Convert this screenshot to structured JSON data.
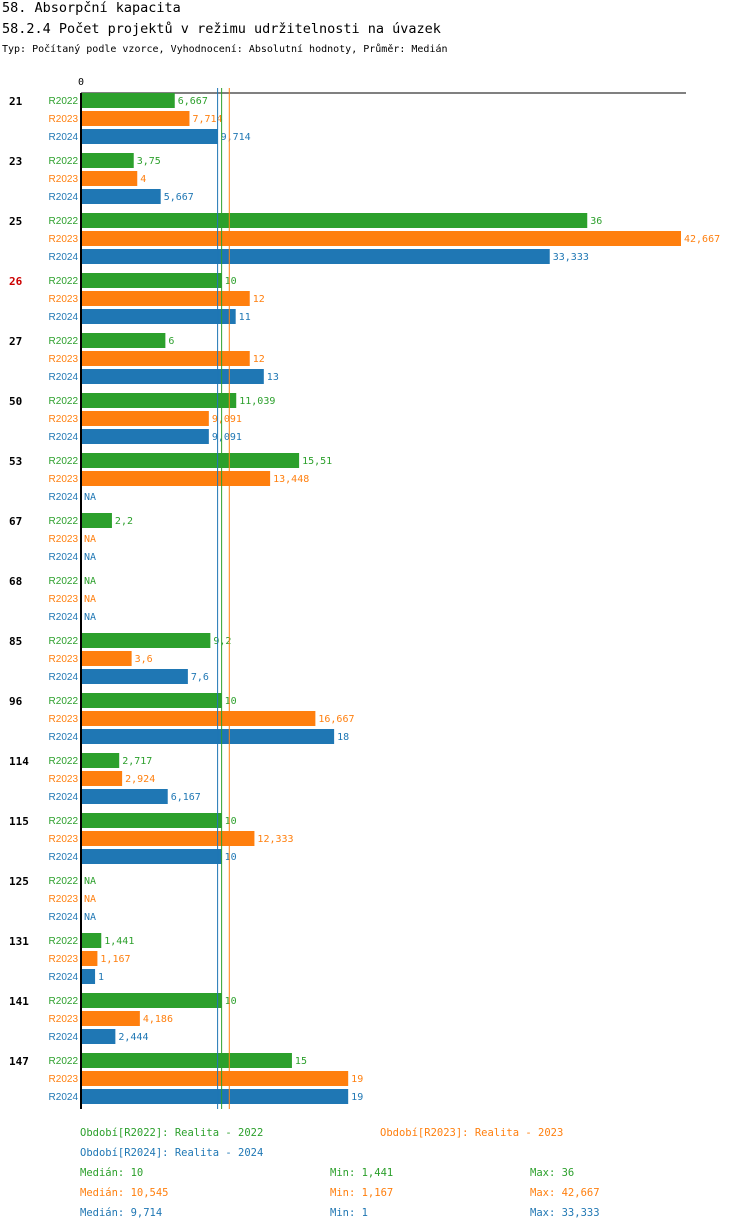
{
  "header": {
    "title": "58. Absorpční kapacita",
    "subtitle": "58.2.4 Počet projektů v režimu udržitelnosti na úvazek",
    "description": "Typ: Počítaný podle vzorce, Vyhodnocení: Absolutní hodnoty, Průměr: Medián"
  },
  "colors": {
    "R2022": "#2ca02c",
    "R2023": "#ff7f0e",
    "R2024": "#1f77b4",
    "highlight": "#cc0000",
    "axis": "#000000"
  },
  "chart_data": {
    "type": "bar",
    "orientation": "horizontal",
    "x_axis_label": "0",
    "xlim": [
      0,
      42.667
    ],
    "series_names": [
      "R2022",
      "R2023",
      "R2024"
    ],
    "highlight_category": "26",
    "na_label": "NA",
    "categories": [
      "21",
      "23",
      "25",
      "26",
      "27",
      "50",
      "53",
      "67",
      "68",
      "85",
      "96",
      "114",
      "115",
      "125",
      "131",
      "141",
      "147"
    ],
    "series": [
      {
        "name": "R2022",
        "values": [
          6.667,
          3.75,
          36,
          10,
          6,
          11.039,
          15.51,
          2.2,
          null,
          9.2,
          10,
          2.717,
          10,
          null,
          1.441,
          10,
          15
        ],
        "labels": [
          "6,667",
          "3,75",
          "36",
          "10",
          "6",
          "11,039",
          "15,51",
          "2,2",
          "NA",
          "9,2",
          "10",
          "2,717",
          "10",
          "NA",
          "1,441",
          "10",
          "15"
        ]
      },
      {
        "name": "R2023",
        "values": [
          7.714,
          4,
          42.667,
          12,
          12,
          9.091,
          13.448,
          null,
          null,
          3.6,
          16.667,
          2.924,
          12.333,
          null,
          1.167,
          4.186,
          19
        ],
        "labels": [
          "7,714",
          "4",
          "42,667",
          "12",
          "12",
          "9,091",
          "13,448",
          "NA",
          "NA",
          "3,6",
          "16,667",
          "2,924",
          "12,333",
          "NA",
          "1,167",
          "4,186",
          "19"
        ]
      },
      {
        "name": "R2024",
        "values": [
          9.714,
          5.667,
          33.333,
          11,
          13,
          9.091,
          null,
          null,
          null,
          7.6,
          18,
          6.167,
          10,
          null,
          1,
          2.444,
          19
        ],
        "labels": [
          "9,714",
          "5,667",
          "33,333",
          "11",
          "13",
          "9,091",
          "NA",
          "NA",
          "NA",
          "7,6",
          "18",
          "6,167",
          "10",
          "NA",
          "1",
          "2,444",
          "19"
        ]
      }
    ],
    "medians": [
      {
        "series": "R2022",
        "value": 10
      },
      {
        "series": "R2023",
        "value": 10.545
      },
      {
        "series": "R2024",
        "value": 9.714
      }
    ]
  },
  "legend": {
    "periods": [
      {
        "series": "R2022",
        "text": "Období[R2022]: Realita - 2022"
      },
      {
        "series": "R2023",
        "text": "Období[R2023]: Realita - 2023"
      },
      {
        "series": "R2024",
        "text": "Období[R2024]: Realita - 2024"
      }
    ],
    "stats": [
      {
        "series": "R2022",
        "median": "Medián: 10",
        "min": "Min: 1,441",
        "max": "Max: 36"
      },
      {
        "series": "R2023",
        "median": "Medián: 10,545",
        "min": "Min: 1,167",
        "max": "Max: 42,667"
      },
      {
        "series": "R2024",
        "median": "Medián: 9,714",
        "min": "Min: 1",
        "max": "Max: 33,333"
      }
    ]
  }
}
